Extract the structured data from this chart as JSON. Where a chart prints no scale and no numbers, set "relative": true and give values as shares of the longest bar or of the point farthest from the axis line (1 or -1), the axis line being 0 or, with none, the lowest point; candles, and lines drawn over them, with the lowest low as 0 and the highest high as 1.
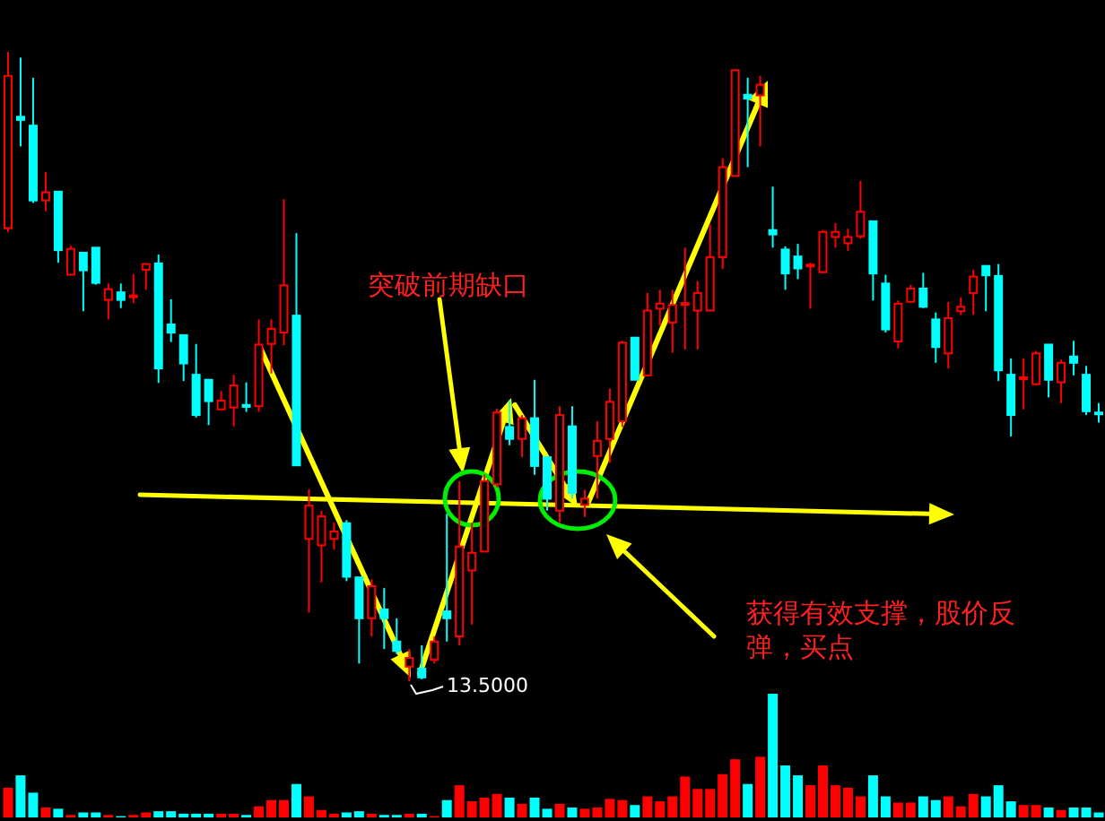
{
  "chart_data": [
    {
      "type": "candlestick",
      "relative": true,
      "categories": [
        null,
        null,
        null,
        null,
        null,
        null,
        null,
        null,
        null,
        null,
        null,
        null,
        null,
        null,
        null,
        null,
        null,
        null,
        null,
        null,
        null,
        null,
        null,
        null,
        null,
        null,
        null,
        null,
        null,
        null,
        null,
        null,
        null,
        null,
        null,
        null,
        null,
        null,
        null,
        null,
        null,
        null,
        null,
        null,
        null,
        null,
        null,
        null,
        null,
        null,
        null,
        null,
        null,
        null,
        null,
        null,
        null,
        null,
        null,
        null,
        null,
        null,
        null,
        null,
        null,
        null,
        null,
        null,
        null,
        null,
        null,
        null,
        null,
        null,
        null,
        null,
        null,
        null,
        null,
        null,
        null,
        null,
        null,
        null,
        null,
        null,
        null,
        null
      ],
      "ohlc": [
        [
          0.72,
          1.0,
          0.714,
          0.962
        ],
        [
          0.897,
          0.991,
          0.85,
          0.892
        ],
        [
          0.883,
          0.959,
          0.76,
          0.764
        ],
        [
          0.764,
          0.809,
          0.747,
          0.777
        ],
        [
          0.778,
          0.778,
          0.665,
          0.685
        ],
        [
          0.646,
          0.692,
          0.646,
          0.687
        ],
        [
          0.681,
          0.681,
          0.588,
          0.653
        ],
        [
          0.689,
          0.689,
          0.63,
          0.633
        ],
        [
          0.606,
          0.632,
          0.575,
          0.623
        ],
        [
          0.618,
          0.632,
          0.593,
          0.606
        ],
        [
          0.611,
          0.647,
          0.601,
          0.613
        ],
        [
          0.654,
          0.663,
          0.622,
          0.663
        ],
        [
          0.664,
          0.678,
          0.474,
          0.497
        ],
        [
          0.567,
          0.607,
          0.539,
          0.554
        ],
        [
          0.55,
          0.55,
          0.477,
          0.505
        ],
        [
          0.487,
          0.536,
          0.419,
          0.423
        ],
        [
          0.479,
          0.479,
          0.407,
          0.445
        ],
        [
          0.432,
          0.461,
          0.432,
          0.446
        ],
        [
          0.435,
          0.487,
          0.405,
          0.47
        ],
        [
          0.439,
          0.475,
          0.428,
          0.436
        ],
        [
          0.437,
          0.575,
          0.428,
          0.535
        ],
        [
          0.536,
          0.575,
          0.489,
          0.56
        ],
        [
          0.554,
          0.766,
          0.534,
          0.629
        ],
        [
          0.581,
          0.712,
          0.343,
          0.343
        ],
        [
          0.226,
          0.305,
          0.109,
          0.279
        ],
        [
          0.216,
          0.271,
          0.157,
          0.262
        ],
        [
          0.226,
          0.252,
          0.209,
          0.238
        ],
        [
          0.251,
          0.256,
          0.159,
          0.166
        ],
        [
          0.165,
          0.165,
          0.028,
          0.1
        ],
        [
          0.1,
          0.162,
          0.071,
          0.151
        ],
        [
          0.114,
          0.148,
          0.051,
          0.1
        ],
        [
          0.063,
          0.1,
          0.043,
          0.048
        ],
        [
          0.023,
          0.051,
          0.0,
          0.037
        ],
        [
          0.02,
          0.057,
          0.003,
          0.006
        ],
        [
          0.034,
          0.071,
          0.028,
          0.063
        ],
        [
          0.111,
          0.266,
          0.063,
          0.1
        ],
        [
          0.071,
          0.318,
          0.057,
          0.214
        ],
        [
          0.176,
          0.252,
          0.09,
          0.204
        ],
        [
          0.206,
          0.328,
          0.206,
          0.318
        ],
        [
          0.313,
          0.433,
          0.308,
          0.427
        ],
        [
          0.404,
          0.447,
          0.375,
          0.385
        ],
        [
          0.385,
          0.423,
          0.356,
          0.418
        ],
        [
          0.418,
          0.479,
          0.328,
          0.342
        ],
        [
          0.356,
          0.356,
          0.271,
          0.29
        ],
        [
          0.271,
          0.437,
          0.252,
          0.423
        ],
        [
          0.405,
          0.437,
          0.29,
          0.299
        ],
        [
          0.28,
          0.304,
          0.261,
          0.29
        ],
        [
          0.358,
          0.413,
          0.29,
          0.382
        ],
        [
          0.385,
          0.465,
          0.347,
          0.444
        ],
        [
          0.413,
          0.541,
          0.404,
          0.538
        ],
        [
          0.546,
          0.546,
          0.479,
          0.479
        ],
        [
          0.486,
          0.617,
          0.486,
          0.589
        ],
        [
          0.592,
          0.622,
          0.565,
          0.6
        ],
        [
          0.57,
          0.622,
          0.522,
          0.598
        ],
        [
          0.6,
          0.689,
          0.527,
          0.601
        ],
        [
          0.589,
          0.636,
          0.527,
          0.617
        ],
        [
          0.589,
          0.726,
          0.589,
          0.674
        ],
        [
          0.674,
          0.831,
          0.655,
          0.817
        ],
        [
          0.803,
          0.971,
          0.803,
          0.971
        ],
        [
          0.932,
          0.959,
          0.817,
          0.926
        ],
        [
          0.931,
          0.962,
          0.85,
          0.948
        ],
        [
          0.717,
          0.786,
          0.689,
          0.71
        ],
        [
          0.686,
          0.691,
          0.622,
          0.648
        ],
        [
          0.675,
          0.695,
          0.639,
          0.656
        ],
        [
          0.66,
          0.665,
          0.592,
          0.662
        ],
        [
          0.65,
          0.717,
          0.649,
          0.714
        ],
        [
          0.706,
          0.728,
          0.689,
          0.714
        ],
        [
          0.696,
          0.719,
          0.684,
          0.706
        ],
        [
          0.707,
          0.795,
          0.703,
          0.746
        ],
        [
          0.731,
          0.731,
          0.605,
          0.648
        ],
        [
          0.632,
          0.646,
          0.554,
          0.559
        ],
        [
          0.54,
          0.605,
          0.529,
          0.6
        ],
        [
          0.603,
          0.63,
          0.601,
          0.624
        ],
        [
          0.624,
          0.649,
          0.593,
          0.595
        ],
        [
          0.575,
          0.586,
          0.506,
          0.531
        ],
        [
          0.521,
          0.603,
          0.497,
          0.577
        ],
        [
          0.588,
          0.61,
          0.582,
          0.595
        ],
        [
          0.617,
          0.654,
          0.582,
          0.643
        ],
        [
          0.66,
          0.66,
          0.588,
          0.645
        ],
        [
          0.644,
          0.663,
          0.477,
          0.494
        ],
        [
          0.487,
          0.513,
          0.389,
          0.423
        ],
        [
          0.481,
          0.513,
          0.432,
          0.483
        ],
        [
          0.472,
          0.525,
          0.47,
          0.521
        ],
        [
          0.535,
          0.535,
          0.451,
          0.479
        ],
        [
          0.475,
          0.511,
          0.442,
          0.506
        ],
        [
          0.516,
          0.541,
          0.486,
          0.506
        ],
        [
          0.487,
          0.501,
          0.423,
          0.429
        ],
        [
          0.427,
          0.442,
          0.411,
          0.425
        ]
      ],
      "colors": [
        "#ff0000",
        "#00ffff",
        "#00ffff",
        "#ff0000",
        "#00ffff",
        "#ff0000",
        "#00ffff",
        "#00ffff",
        "#ff0000",
        "#00ffff",
        "#ff0000",
        "#ff0000",
        "#00ffff",
        "#00ffff",
        "#00ffff",
        "#00ffff",
        "#00ffff",
        "#ff0000",
        "#ff0000",
        "#00ffff",
        "#ff0000",
        "#ff0000",
        "#ff0000",
        "#00ffff",
        "#ff0000",
        "#ff0000",
        "#ff0000",
        "#00ffff",
        "#00ffff",
        "#ff0000",
        "#00ffff",
        "#00ffff",
        "#ff0000",
        "#00ffff",
        "#ff0000",
        "#00ffff",
        "#ff0000",
        "#ff0000",
        "#ff0000",
        "#ff0000",
        "#00ffff",
        "#ff0000",
        "#00ffff",
        "#00ffff",
        "#ff0000",
        "#00ffff",
        "#ff0000",
        "#ff0000",
        "#ff0000",
        "#ff0000",
        "#00ffff",
        "#ff0000",
        "#ff0000",
        "#ff0000",
        "#ff0000",
        "#ff0000",
        "#ff0000",
        "#ff0000",
        "#ff0000",
        "#00ffff",
        "#ff0000",
        "#00ffff",
        "#00ffff",
        "#00ffff",
        "#ff0000",
        "#ff0000",
        "#ff0000",
        "#ff0000",
        "#ff0000",
        "#00ffff",
        "#00ffff",
        "#ff0000",
        "#ff0000",
        "#00ffff",
        "#00ffff",
        "#ff0000",
        "#ff0000",
        "#ff0000",
        "#00ffff",
        "#00ffff",
        "#00ffff",
        "#ff0000",
        "#ff0000",
        "#00ffff",
        "#ff0000",
        "#00ffff",
        "#00ffff",
        "#00ffff"
      ],
      "annotations": [
        "突破前期缺口",
        "13.5000",
        "获得有效支撑，股价反弹，买点"
      ]
    },
    {
      "type": "bar",
      "relative": true,
      "categories": [
        null,
        null,
        null,
        null,
        null,
        null,
        null,
        null,
        null,
        null,
        null,
        null,
        null,
        null,
        null,
        null,
        null,
        null,
        null,
        null,
        null,
        null,
        null,
        null,
        null,
        null,
        null,
        null,
        null,
        null,
        null,
        null,
        null,
        null,
        null,
        null,
        null,
        null,
        null,
        null,
        null,
        null,
        null,
        null,
        null,
        null,
        null,
        null,
        null,
        null,
        null,
        null,
        null,
        null,
        null,
        null,
        null,
        null,
        null,
        null,
        null,
        null,
        null,
        null,
        null,
        null,
        null,
        null,
        null,
        null,
        null,
        null,
        null,
        null,
        null,
        null,
        null,
        null,
        null,
        null,
        null,
        null,
        null,
        null,
        null,
        null,
        null,
        null
      ],
      "values": [
        0.24,
        0.34,
        0.2,
        0.08,
        0.07,
        0.02,
        0.04,
        0.04,
        0.02,
        0.01,
        0.02,
        0.04,
        0.05,
        0.05,
        0.03,
        0.03,
        0.03,
        0.03,
        0.03,
        0.02,
        0.09,
        0.14,
        0.14,
        0.27,
        0.17,
        0.06,
        0.03,
        0.04,
        0.05,
        0.03,
        0.02,
        0.02,
        0.03,
        0.03,
        0.01,
        0.14,
        0.26,
        0.13,
        0.16,
        0.19,
        0.16,
        0.11,
        0.16,
        0.07,
        0.11,
        0.08,
        0.07,
        0.08,
        0.15,
        0.14,
        0.1,
        0.17,
        0.13,
        0.17,
        0.33,
        0.23,
        0.23,
        0.35,
        0.47,
        0.27,
        0.49,
        1,
        0.42,
        0.34,
        0.26,
        0.42,
        0.26,
        0.24,
        0.17,
        0.34,
        0.17,
        0.12,
        0.12,
        0.17,
        0.14,
        0.17,
        0.09,
        0.19,
        0.17,
        0.26,
        0.13,
        0.1,
        0.1,
        0.08,
        0.06,
        0.08,
        0.08,
        0.04
      ],
      "colors": [
        "#ff0000",
        "#00ffff",
        "#00ffff",
        "#ff0000",
        "#00ffff",
        "#ff0000",
        "#00ffff",
        "#00ffff",
        "#ff0000",
        "#00ffff",
        "#ff0000",
        "#ff0000",
        "#00ffff",
        "#00ffff",
        "#00ffff",
        "#00ffff",
        "#00ffff",
        "#ff0000",
        "#ff0000",
        "#00ffff",
        "#ff0000",
        "#ff0000",
        "#ff0000",
        "#00ffff",
        "#ff0000",
        "#ff0000",
        "#ff0000",
        "#00ffff",
        "#00ffff",
        "#ff0000",
        "#00ffff",
        "#00ffff",
        "#ff0000",
        "#00ffff",
        "#ff0000",
        "#00ffff",
        "#ff0000",
        "#ff0000",
        "#ff0000",
        "#ff0000",
        "#00ffff",
        "#ff0000",
        "#00ffff",
        "#00ffff",
        "#ff0000",
        "#00ffff",
        "#ff0000",
        "#ff0000",
        "#ff0000",
        "#ff0000",
        "#00ffff",
        "#ff0000",
        "#ff0000",
        "#ff0000",
        "#ff0000",
        "#ff0000",
        "#ff0000",
        "#ff0000",
        "#ff0000",
        "#00ffff",
        "#ff0000",
        "#00ffff",
        "#00ffff",
        "#00ffff",
        "#ff0000",
        "#ff0000",
        "#ff0000",
        "#ff0000",
        "#ff0000",
        "#00ffff",
        "#00ffff",
        "#ff0000",
        "#ff0000",
        "#00ffff",
        "#00ffff",
        "#ff0000",
        "#ff0000",
        "#ff0000",
        "#00ffff",
        "#00ffff",
        "#00ffff",
        "#ff0000",
        "#ff0000",
        "#00ffff",
        "#ff0000",
        "#00ffff",
        "#00ffff",
        "#00ffff"
      ]
    }
  ]
}
